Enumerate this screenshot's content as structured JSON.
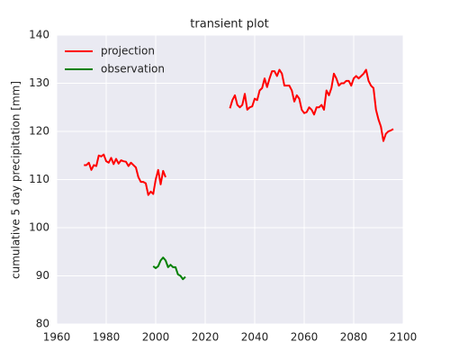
{
  "chart_data": {
    "type": "line",
    "title": "transient plot",
    "ylabel": "cumulative 5 day precipitation [mm]",
    "xlim": [
      1960,
      2100
    ],
    "xticks": [
      1960,
      1980,
      2000,
      2020,
      2040,
      2060,
      2080,
      2100
    ],
    "ylim": [
      80,
      140
    ],
    "yticks": [
      80,
      90,
      100,
      110,
      120,
      130,
      140
    ],
    "grid": true,
    "legend": "upper left",
    "series": [
      {
        "name": "projection",
        "color": "#ff0000",
        "x": [
          1971,
          1972,
          1973,
          1974,
          1975,
          1976,
          1977,
          1978,
          1979,
          1980,
          1981,
          1982,
          1983,
          1984,
          1985,
          1986,
          1987,
          1988,
          1989,
          1990,
          1991,
          1992,
          1993,
          1994,
          1995,
          1996,
          1997,
          1998,
          1999,
          2000,
          2001,
          2002,
          2003,
          2004,
          null,
          2030,
          2031,
          2032,
          2033,
          2034,
          2035,
          2036,
          2037,
          2038,
          2039,
          2040,
          2041,
          2042,
          2043,
          2044,
          2045,
          2046,
          2047,
          2048,
          2049,
          2050,
          2051,
          2052,
          2053,
          2054,
          2055,
          2056,
          2057,
          2058,
          2059,
          2060,
          2061,
          2062,
          2063,
          2064,
          2065,
          2066,
          2067,
          2068,
          2069,
          2070,
          2071,
          2072,
          2073,
          2074,
          2075,
          2076,
          2077,
          2078,
          2079,
          2080,
          2081,
          2082,
          2083,
          2084,
          2085,
          2086,
          2087,
          2088,
          2089,
          2090,
          2091,
          2092,
          2093,
          2094,
          2095,
          2096
        ],
        "values": [
          113,
          113,
          113.5,
          112,
          113,
          112.8,
          115,
          114.8,
          115.2,
          113.8,
          113.5,
          114.5,
          113.2,
          114.3,
          113.3,
          114,
          113.8,
          113.7,
          112.8,
          113.5,
          113,
          112.5,
          110.5,
          109.5,
          109.5,
          109.2,
          106.8,
          107.5,
          107,
          110,
          112,
          109,
          111.8,
          110.5,
          null,
          124.8,
          126.5,
          127.5,
          125.5,
          125,
          125.5,
          127.8,
          124.5,
          125,
          125.2,
          126.8,
          126.5,
          128.5,
          129,
          131,
          129.2,
          131,
          132.5,
          132.5,
          131.5,
          132.8,
          132,
          129.5,
          129.5,
          129.5,
          128.5,
          126.2,
          127.5,
          126.8,
          124.5,
          123.8,
          124,
          125,
          124.5,
          123.5,
          125,
          125,
          125.5,
          124.5,
          128.5,
          127.5,
          129,
          132,
          131,
          129.5,
          130,
          130,
          130.5,
          130.5,
          129.5,
          131,
          131.5,
          131,
          131.5,
          132,
          132.8,
          130.5,
          129.5,
          129,
          124.5,
          122.5,
          121,
          118,
          119.5,
          120,
          120.2,
          120.5
        ]
      },
      {
        "name": "observation",
        "color": "#008000",
        "x": [
          1999,
          2000,
          2001,
          2002,
          2003,
          2004,
          2005,
          2006,
          2007,
          2008,
          2009,
          2010,
          2011,
          2012
        ],
        "values": [
          92,
          91.6,
          92,
          93.2,
          93.8,
          93.2,
          91.8,
          92.3,
          91.8,
          91.8,
          90.3,
          90,
          89.3,
          89.8
        ]
      }
    ]
  }
}
